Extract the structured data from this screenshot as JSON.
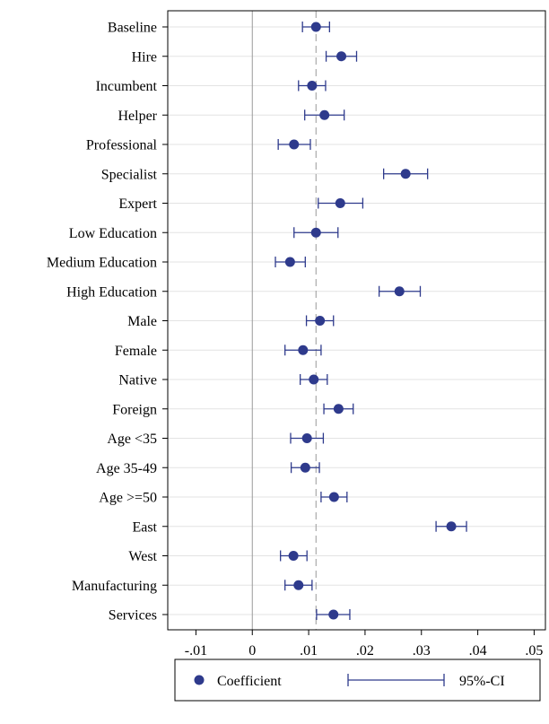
{
  "chart_data": {
    "type": "scatter",
    "title": "",
    "xlabel": "",
    "ylabel": "",
    "xlim": [
      -0.015,
      0.052
    ],
    "x_ticks": [
      -0.01,
      0,
      0.01,
      0.02,
      0.03,
      0.04,
      0.05
    ],
    "x_tick_labels": [
      "-.01",
      "0",
      ".01",
      ".02",
      ".03",
      ".04",
      ".05"
    ],
    "reference_lines": [
      {
        "x": 0,
        "style": "solid"
      },
      {
        "x": 0.0113,
        "style": "dashed"
      }
    ],
    "grid": "horizontal",
    "legend_position": "bottom",
    "colors": {
      "marker": "#2e3a8c",
      "ci": "#2e3a8c",
      "refline": "#999999"
    },
    "series": [
      {
        "name": "Coefficient",
        "kind": "point"
      },
      {
        "name": "95%-CI",
        "kind": "interval"
      }
    ],
    "categories": [
      "Baseline",
      "Hire",
      "Incumbent",
      "Helper",
      "Professional",
      "Specialist",
      "Expert",
      "Low Education",
      "Medium Education",
      "High Education",
      "Male",
      "Female",
      "Native",
      "Foreign",
      "Age <35",
      "Age 35-49",
      "Age >=50",
      "East",
      "West",
      "Manufacturing",
      "Services"
    ],
    "points": [
      {
        "label": "Baseline",
        "coef": 0.0113,
        "lo": 0.0089,
        "hi": 0.0137
      },
      {
        "label": "Hire",
        "coef": 0.0158,
        "lo": 0.0131,
        "hi": 0.0185
      },
      {
        "label": "Incumbent",
        "coef": 0.0106,
        "lo": 0.0082,
        "hi": 0.013
      },
      {
        "label": "Helper",
        "coef": 0.0128,
        "lo": 0.0093,
        "hi": 0.0163
      },
      {
        "label": "Professional",
        "coef": 0.0074,
        "lo": 0.0046,
        "hi": 0.0103
      },
      {
        "label": "Specialist",
        "coef": 0.0272,
        "lo": 0.0233,
        "hi": 0.0311
      },
      {
        "label": "Expert",
        "coef": 0.0156,
        "lo": 0.0117,
        "hi": 0.0196
      },
      {
        "label": "Low Education",
        "coef": 0.0113,
        "lo": 0.0074,
        "hi": 0.0152
      },
      {
        "label": "Medium Education",
        "coef": 0.0067,
        "lo": 0.0041,
        "hi": 0.0094
      },
      {
        "label": "High Education",
        "coef": 0.0261,
        "lo": 0.0225,
        "hi": 0.0298
      },
      {
        "label": "Male",
        "coef": 0.012,
        "lo": 0.0096,
        "hi": 0.0144
      },
      {
        "label": "Female",
        "coef": 0.009,
        "lo": 0.0058,
        "hi": 0.0122
      },
      {
        "label": "Native",
        "coef": 0.0109,
        "lo": 0.0085,
        "hi": 0.0133
      },
      {
        "label": "Foreign",
        "coef": 0.0153,
        "lo": 0.0127,
        "hi": 0.0179
      },
      {
        "label": "Age <35",
        "coef": 0.0097,
        "lo": 0.0068,
        "hi": 0.0126
      },
      {
        "label": "Age 35-49",
        "coef": 0.0094,
        "lo": 0.0069,
        "hi": 0.0119
      },
      {
        "label": "Age >=50",
        "coef": 0.0145,
        "lo": 0.0122,
        "hi": 0.0168
      },
      {
        "label": "East",
        "coef": 0.0353,
        "lo": 0.0326,
        "hi": 0.038
      },
      {
        "label": "West",
        "coef": 0.0073,
        "lo": 0.005,
        "hi": 0.0097
      },
      {
        "label": "Manufacturing",
        "coef": 0.0082,
        "lo": 0.0058,
        "hi": 0.0106
      },
      {
        "label": "Services",
        "coef": 0.0144,
        "lo": 0.0114,
        "hi": 0.0173
      }
    ]
  },
  "legend": {
    "coefficient_label": "Coefficient",
    "ci_label": "95%-CI"
  }
}
